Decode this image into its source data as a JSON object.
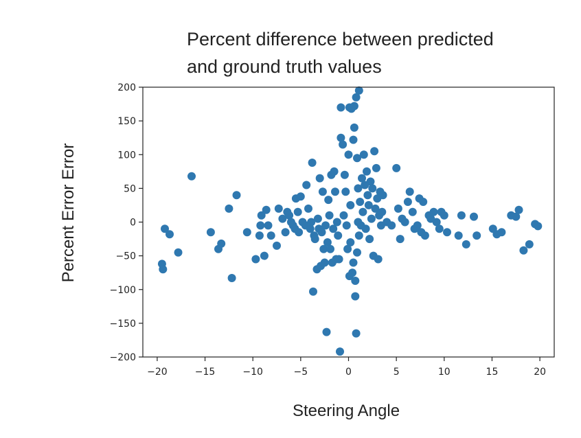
{
  "chart_data": {
    "type": "scatter",
    "title_lines": [
      "Percent difference between predicted",
      "and ground truth values"
    ],
    "xlabel": "Steering Angle",
    "ylabel": "Percent Error Error",
    "xlim": [
      -21.5,
      21.5
    ],
    "ylim": [
      -200,
      200
    ],
    "x_ticks": [
      -20,
      -15,
      -10,
      -5,
      0,
      5,
      10,
      15,
      20
    ],
    "x_tick_labels": [
      "−20",
      "−15",
      "−10",
      "−5",
      "0",
      "5",
      "10",
      "15",
      "20"
    ],
    "y_ticks": [
      200,
      150,
      100,
      50,
      0,
      -50,
      -100,
      -150,
      -200
    ],
    "y_tick_labels": [
      "200",
      "150",
      "100",
      "50",
      "0",
      "−50",
      "−100",
      "−150",
      "−200"
    ],
    "marker_color": "#2f78b0",
    "grid": false,
    "points": [
      [
        -19.5,
        -62
      ],
      [
        -19.4,
        -70
      ],
      [
        -19.2,
        -10
      ],
      [
        -18.7,
        -18
      ],
      [
        -17.8,
        -45
      ],
      [
        -16.4,
        68
      ],
      [
        -14.4,
        -15
      ],
      [
        -13.6,
        -40
      ],
      [
        -13.3,
        -32
      ],
      [
        -12.5,
        20
      ],
      [
        -12.2,
        -83
      ],
      [
        -11.7,
        40
      ],
      [
        -10.6,
        -15
      ],
      [
        -9.7,
        -55
      ],
      [
        -9.3,
        -20
      ],
      [
        -9.2,
        -5
      ],
      [
        -9.1,
        10
      ],
      [
        -8.8,
        -50
      ],
      [
        -8.6,
        18
      ],
      [
        -8.4,
        -5
      ],
      [
        -8.1,
        -20
      ],
      [
        -7.5,
        -35
      ],
      [
        -7.3,
        20
      ],
      [
        -6.9,
        5
      ],
      [
        -6.6,
        -15
      ],
      [
        -6.4,
        15
      ],
      [
        -6.2,
        10
      ],
      [
        -6.0,
        0
      ],
      [
        -5.8,
        -5
      ],
      [
        -5.6,
        -10
      ],
      [
        -5.5,
        35
      ],
      [
        -5.3,
        15
      ],
      [
        -5.2,
        -15
      ],
      [
        -5.0,
        38
      ],
      [
        -4.8,
        0
      ],
      [
        -4.5,
        -5
      ],
      [
        -4.4,
        55
      ],
      [
        -4.2,
        20
      ],
      [
        -4.0,
        -10
      ],
      [
        -3.9,
        0
      ],
      [
        -3.8,
        88
      ],
      [
        -3.7,
        -103
      ],
      [
        -3.6,
        -20
      ],
      [
        -3.5,
        -25
      ],
      [
        -3.3,
        -70
      ],
      [
        -3.2,
        5
      ],
      [
        -3.1,
        -10
      ],
      [
        -3.0,
        65
      ],
      [
        -2.9,
        -65
      ],
      [
        -2.8,
        -15
      ],
      [
        -2.7,
        45
      ],
      [
        -2.6,
        -40
      ],
      [
        -2.5,
        -60
      ],
      [
        -2.4,
        -5
      ],
      [
        -2.3,
        -163
      ],
      [
        -2.2,
        -30
      ],
      [
        -2.1,
        33
      ],
      [
        -2.0,
        10
      ],
      [
        -1.9,
        -40
      ],
      [
        -1.8,
        70
      ],
      [
        -1.7,
        -60
      ],
      [
        -1.6,
        -10
      ],
      [
        -1.5,
        75
      ],
      [
        -1.4,
        45
      ],
      [
        -1.3,
        -55
      ],
      [
        -1.2,
        0
      ],
      [
        -1.1,
        -20
      ],
      [
        -1.0,
        -55
      ],
      [
        -0.9,
        -192
      ],
      [
        -0.8,
        125
      ],
      [
        -0.8,
        170
      ],
      [
        -0.6,
        115
      ],
      [
        -0.5,
        10
      ],
      [
        -0.4,
        70
      ],
      [
        -0.3,
        45
      ],
      [
        -0.2,
        -5
      ],
      [
        -0.1,
        -40
      ],
      [
        0.0,
        100
      ],
      [
        0.1,
        170
      ],
      [
        0.1,
        -80
      ],
      [
        0.2,
        25
      ],
      [
        0.2,
        -30
      ],
      [
        0.3,
        168
      ],
      [
        0.4,
        -75
      ],
      [
        0.5,
        122
      ],
      [
        0.5,
        -60
      ],
      [
        0.6,
        140
      ],
      [
        0.6,
        172
      ],
      [
        0.7,
        -110
      ],
      [
        0.7,
        -87
      ],
      [
        0.8,
        -165
      ],
      [
        0.8,
        185
      ],
      [
        0.9,
        -45
      ],
      [
        0.9,
        95
      ],
      [
        1.0,
        0
      ],
      [
        1.0,
        50
      ],
      [
        1.1,
        195
      ],
      [
        1.1,
        -20
      ],
      [
        1.2,
        30
      ],
      [
        1.3,
        -5
      ],
      [
        1.4,
        65
      ],
      [
        1.5,
        15
      ],
      [
        1.6,
        100
      ],
      [
        1.7,
        55
      ],
      [
        1.8,
        -10
      ],
      [
        1.9,
        75
      ],
      [
        2.0,
        40
      ],
      [
        2.1,
        25
      ],
      [
        2.2,
        -25
      ],
      [
        2.3,
        60
      ],
      [
        2.4,
        5
      ],
      [
        2.5,
        50
      ],
      [
        2.6,
        -50
      ],
      [
        2.7,
        105
      ],
      [
        2.8,
        20
      ],
      [
        2.9,
        80
      ],
      [
        3.0,
        35
      ],
      [
        3.1,
        -55
      ],
      [
        3.2,
        10
      ],
      [
        3.3,
        45
      ],
      [
        3.4,
        -5
      ],
      [
        3.5,
        15
      ],
      [
        3.6,
        40
      ],
      [
        4.0,
        0
      ],
      [
        4.5,
        -5
      ],
      [
        5.0,
        80
      ],
      [
        5.2,
        20
      ],
      [
        5.4,
        -25
      ],
      [
        5.6,
        5
      ],
      [
        5.9,
        0
      ],
      [
        6.2,
        30
      ],
      [
        6.4,
        45
      ],
      [
        6.7,
        15
      ],
      [
        6.9,
        -10
      ],
      [
        7.2,
        -5
      ],
      [
        7.4,
        35
      ],
      [
        7.6,
        -15
      ],
      [
        7.8,
        30
      ],
      [
        8.0,
        -20
      ],
      [
        8.4,
        10
      ],
      [
        8.6,
        5
      ],
      [
        8.9,
        15
      ],
      [
        9.2,
        0
      ],
      [
        9.5,
        -10
      ],
      [
        9.7,
        15
      ],
      [
        10.0,
        10
      ],
      [
        10.3,
        -15
      ],
      [
        11.5,
        -20
      ],
      [
        11.8,
        10
      ],
      [
        12.3,
        -33
      ],
      [
        13.1,
        8
      ],
      [
        13.4,
        -20
      ],
      [
        15.1,
        -10
      ],
      [
        15.5,
        -18
      ],
      [
        16.0,
        -15
      ],
      [
        17.0,
        10
      ],
      [
        17.5,
        8
      ],
      [
        17.8,
        18
      ],
      [
        18.3,
        -42
      ],
      [
        18.9,
        -33
      ],
      [
        19.5,
        -3
      ],
      [
        19.8,
        -6
      ]
    ]
  }
}
